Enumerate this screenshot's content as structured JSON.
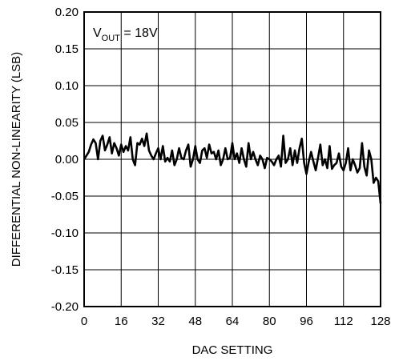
{
  "chart_data": {
    "type": "line",
    "xlabel": "DAC SETTING",
    "ylabel": "DIFFERENTIAL NON-LINEARITY (LSB)",
    "annotation": {
      "main": "V",
      "sub": "OUT",
      "rest": " = 18V"
    },
    "xlim": [
      0,
      128
    ],
    "ylim": [
      -0.2,
      0.2
    ],
    "xticks": [
      0,
      16,
      32,
      48,
      64,
      80,
      96,
      112,
      128
    ],
    "xtick_labels": [
      "0",
      "16",
      "32",
      "48",
      "64",
      "80",
      "96",
      "112",
      "128"
    ],
    "yticks": [
      0.2,
      0.15,
      0.1,
      0.05,
      0.0,
      -0.05,
      -0.1,
      -0.15,
      -0.2
    ],
    "ytick_labels": [
      "0.20",
      "0.15",
      "0.10",
      "0.05",
      "0.00",
      "-0.05",
      "-0.10",
      "-0.15",
      "-0.20"
    ],
    "grid": true,
    "legend": "none",
    "series": [
      {
        "x": [
          0,
          1,
          2,
          3,
          4,
          5,
          6,
          7,
          8,
          9,
          10,
          11,
          12,
          13,
          14,
          15,
          16,
          17,
          18,
          19,
          20,
          21,
          22,
          23,
          24,
          25,
          26,
          27,
          28,
          29,
          30,
          31,
          32,
          33,
          34,
          35,
          36,
          37,
          38,
          39,
          40,
          41,
          42,
          43,
          44,
          45,
          46,
          47,
          48,
          49,
          50,
          51,
          52,
          53,
          54,
          55,
          56,
          57,
          58,
          59,
          60,
          61,
          62,
          63,
          64,
          65,
          66,
          67,
          68,
          69,
          70,
          71,
          72,
          73,
          74,
          75,
          76,
          77,
          78,
          79,
          80,
          81,
          82,
          83,
          84,
          85,
          86,
          87,
          88,
          89,
          90,
          91,
          92,
          93,
          94,
          95,
          96,
          97,
          98,
          99,
          100,
          101,
          102,
          103,
          104,
          105,
          106,
          107,
          108,
          109,
          110,
          111,
          112,
          113,
          114,
          115,
          116,
          117,
          118,
          119,
          120,
          121,
          122,
          123,
          124,
          125,
          126,
          127,
          128
        ],
        "y": [
          0.0,
          0.005,
          0.01,
          0.02,
          0.027,
          0.022,
          0.0,
          0.025,
          0.032,
          0.012,
          0.02,
          0.03,
          0.008,
          0.022,
          0.015,
          0.005,
          0.02,
          0.01,
          0.018,
          0.012,
          0.03,
          0.0,
          -0.008,
          0.022,
          0.02,
          0.028,
          0.018,
          0.035,
          0.012,
          0.005,
          0.0,
          0.008,
          0.015,
          0.0,
          0.018,
          -0.003,
          0.002,
          -0.003,
          0.012,
          -0.008,
          0.0,
          0.015,
          0.002,
          0.0,
          0.012,
          0.02,
          -0.01,
          0.0,
          0.018,
          0.0,
          -0.005,
          0.012,
          0.015,
          0.002,
          0.02,
          0.008,
          0.01,
          0.0,
          0.012,
          -0.008,
          0.0,
          0.015,
          0.0,
          0.002,
          0.022,
          0.0,
          0.008,
          -0.005,
          0.015,
          0.0,
          -0.01,
          0.022,
          0.0,
          0.01,
          0.0,
          -0.008,
          0.005,
          0.0,
          -0.012,
          0.002,
          0.0,
          -0.003,
          -0.008,
          0.0,
          0.005,
          -0.01,
          0.032,
          -0.005,
          0.0,
          0.015,
          -0.008,
          0.012,
          -0.005,
          0.015,
          0.028,
          -0.005,
          -0.02,
          -0.003,
          0.01,
          -0.003,
          -0.015,
          0.002,
          0.02,
          -0.008,
          0.0,
          -0.012,
          0.018,
          -0.013,
          -0.008,
          -0.005,
          0.008,
          -0.01,
          -0.015,
          -0.005,
          0.015,
          -0.015,
          0.0,
          -0.008,
          -0.018,
          -0.012,
          0.022,
          -0.01,
          -0.022,
          0.012,
          0.0,
          -0.032,
          -0.025,
          -0.03,
          -0.06
        ]
      }
    ]
  }
}
